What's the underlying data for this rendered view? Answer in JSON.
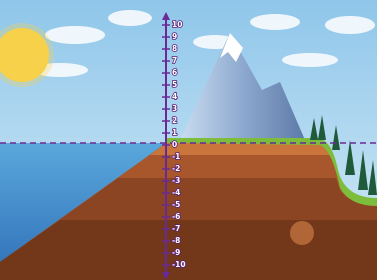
{
  "number_line": {
    "ticks": [
      10,
      9,
      8,
      7,
      6,
      5,
      4,
      3,
      2,
      1,
      0,
      -1,
      -2,
      -3,
      -4,
      -5,
      -6,
      -7,
      -8,
      -9,
      -10
    ]
  }
}
